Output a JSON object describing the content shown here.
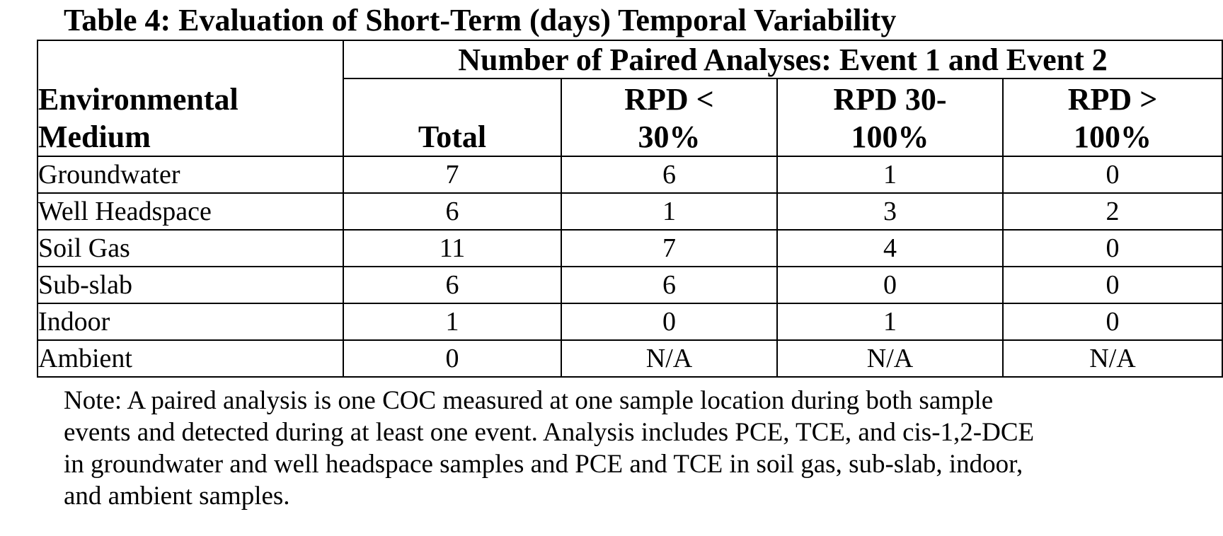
{
  "title": "Table 4: Evaluation of Short-Term (days) Temporal Variability",
  "table": {
    "group_header": "Number of Paired Analyses: Event 1 and Event 2",
    "medium_header_line1": "Environmental",
    "medium_header_line2": "Medium",
    "columns": [
      {
        "line1": "",
        "line2": "Total"
      },
      {
        "line1": "RPD <",
        "line2": "30%"
      },
      {
        "line1": "RPD 30-",
        "line2": "100%"
      },
      {
        "line1": "RPD >",
        "line2": "100%"
      }
    ],
    "rows": [
      {
        "medium": "Groundwater",
        "values": [
          "7",
          "6",
          "1",
          "0"
        ]
      },
      {
        "medium": "Well Headspace",
        "values": [
          "6",
          "1",
          "3",
          "2"
        ]
      },
      {
        "medium": "Soil Gas",
        "values": [
          "11",
          "7",
          "4",
          "0"
        ]
      },
      {
        "medium": "Sub-slab",
        "values": [
          "6",
          "6",
          "0",
          "0"
        ]
      },
      {
        "medium": "Indoor",
        "values": [
          "1",
          "0",
          "1",
          "0"
        ]
      },
      {
        "medium": "Ambient",
        "values": [
          "0",
          "N/A",
          "N/A",
          "N/A"
        ]
      }
    ]
  },
  "note": {
    "lines": [
      "Note: A paired analysis is one COC measured at one sample location during both sample",
      "events and detected during at least one event.  Analysis includes PCE, TCE, and cis-1,2-DCE",
      "in groundwater and well headspace samples and PCE and TCE in soil gas, sub-slab, indoor,",
      "and ambient samples."
    ]
  }
}
